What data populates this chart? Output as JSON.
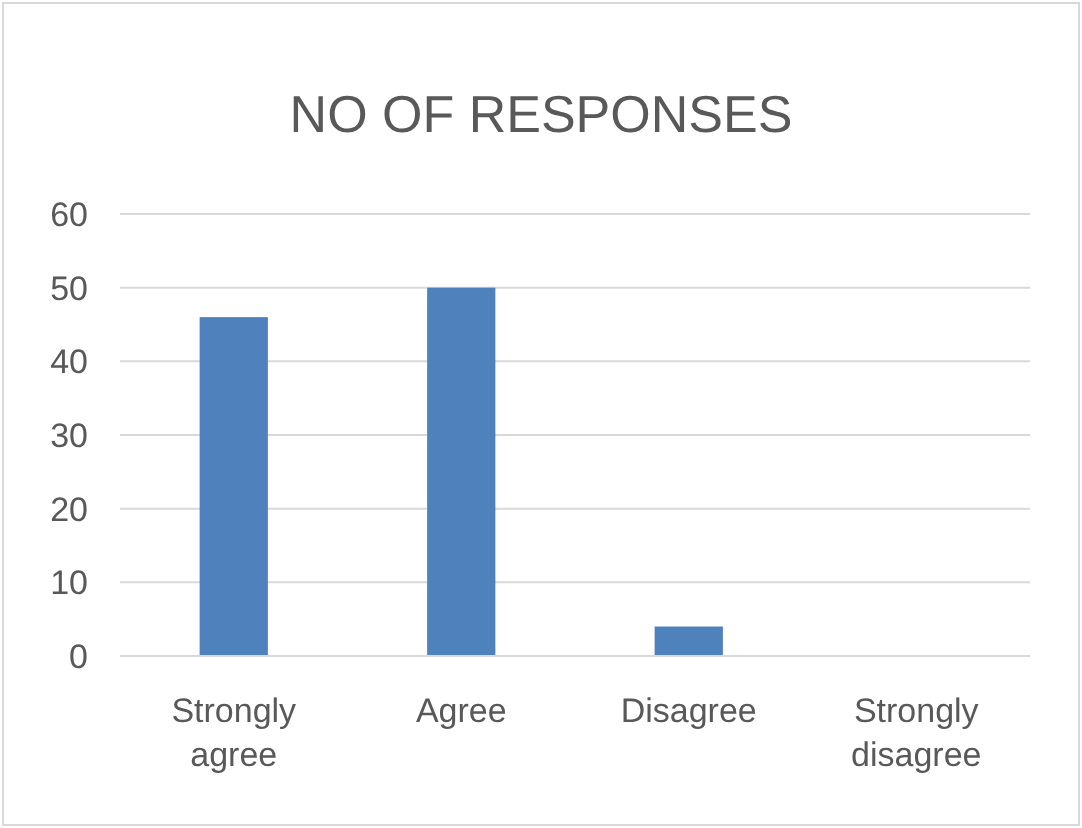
{
  "chart_data": {
    "type": "bar",
    "title": "NO OF RESPONSES",
    "categories": [
      "Strongly agree",
      "Agree",
      "Disagree",
      "Strongly disagree"
    ],
    "values": [
      46,
      50,
      4,
      0
    ],
    "color": "#4f81bd",
    "ylim": [
      0,
      60
    ],
    "yticks": [
      0,
      10,
      20,
      30,
      40,
      50,
      60
    ],
    "grid": "y"
  }
}
